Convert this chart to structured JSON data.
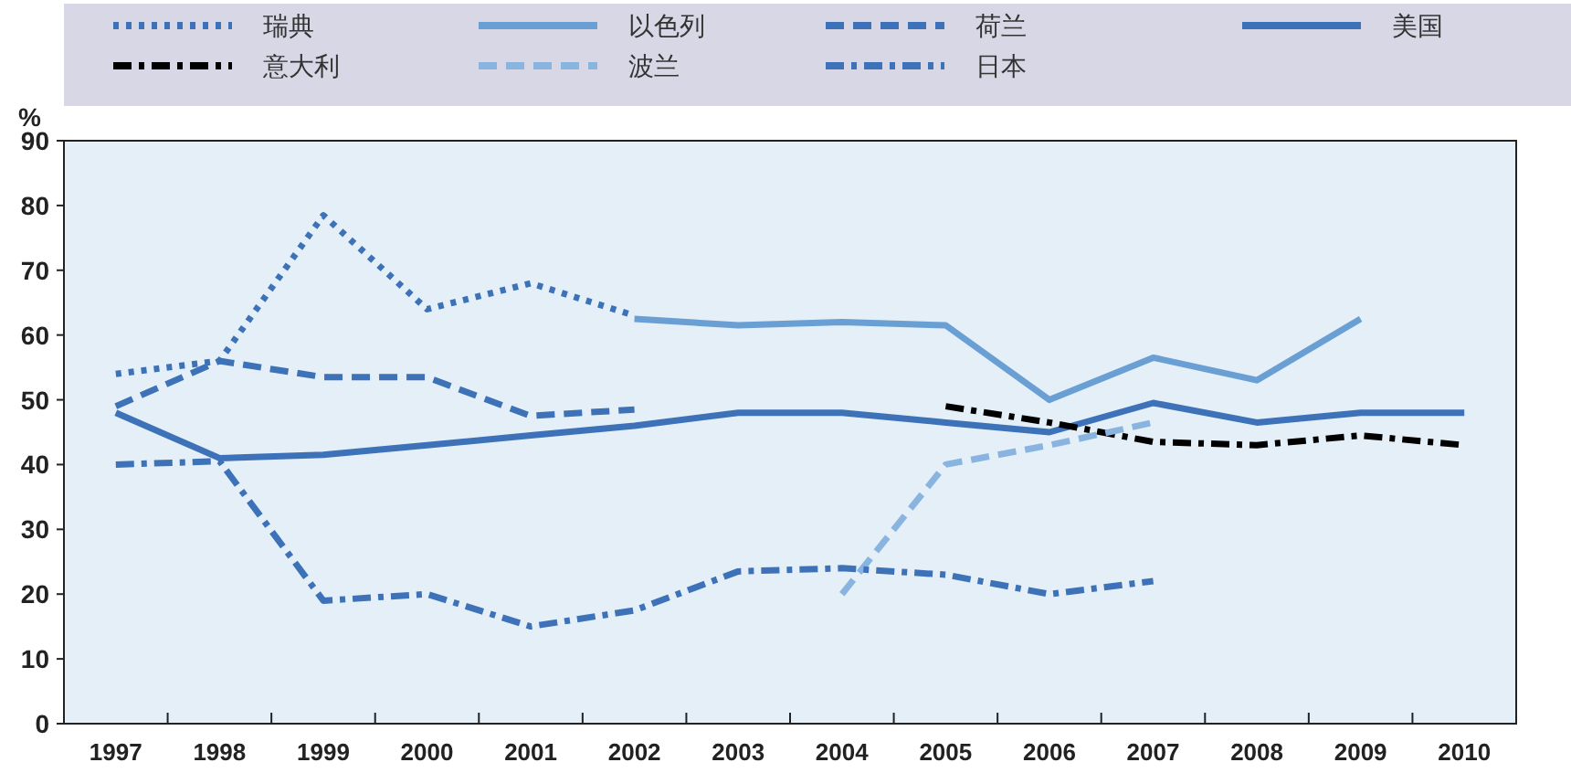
{
  "chart_data": {
    "type": "line",
    "ylabel": "%",
    "categories": [
      "1997",
      "1998",
      "1999",
      "2000",
      "2001",
      "2002",
      "2003",
      "2004",
      "2005",
      "2006",
      "2007",
      "2008",
      "2009",
      "2010"
    ],
    "ylim": [
      0,
      90
    ],
    "yticks": [
      0,
      10,
      20,
      30,
      40,
      50,
      60,
      70,
      80,
      90
    ],
    "grid": false,
    "legend": "top",
    "marker": "none",
    "series": [
      {
        "name": "瑞典",
        "color": "#3d72b8",
        "line_style": "dotted",
        "values": [
          54,
          56,
          78.5,
          64,
          68,
          63,
          null,
          null,
          null,
          null,
          null,
          null,
          null,
          null
        ]
      },
      {
        "name": "以色列",
        "color": "#6a9fd4",
        "line_style": "solid",
        "values": [
          null,
          null,
          null,
          null,
          null,
          62.5,
          61.5,
          62,
          61.5,
          50,
          56.5,
          53,
          62.5,
          null
        ]
      },
      {
        "name": "荷兰",
        "color": "#3d72b8",
        "line_style": "dashed",
        "values": [
          49,
          56,
          53.5,
          53.5,
          47.5,
          48.5,
          null,
          null,
          null,
          null,
          null,
          null,
          null,
          null
        ]
      },
      {
        "name": "美国",
        "color": "#3d72b8",
        "line_style": "solid",
        "values": [
          48,
          41,
          41.5,
          43,
          44.5,
          46,
          48,
          48,
          46.5,
          45,
          49.5,
          46.5,
          48,
          48
        ]
      },
      {
        "name": "意大利",
        "color": "#000000",
        "line_style": "dashdot",
        "values": [
          null,
          null,
          null,
          null,
          null,
          null,
          null,
          null,
          49,
          46.5,
          43.5,
          43,
          44.5,
          43
        ]
      },
      {
        "name": "波兰",
        "color": "#8ab4e0",
        "line_style": "dashed",
        "values": [
          null,
          null,
          null,
          null,
          null,
          null,
          null,
          20,
          40,
          43,
          46.5,
          null,
          null,
          null
        ]
      },
      {
        "name": "日本",
        "color": "#3d72b8",
        "line_style": "dashdot",
        "values": [
          40,
          40.5,
          19,
          20,
          15,
          17.5,
          23.5,
          24,
          23,
          20,
          22,
          null,
          null,
          null
        ]
      }
    ]
  }
}
